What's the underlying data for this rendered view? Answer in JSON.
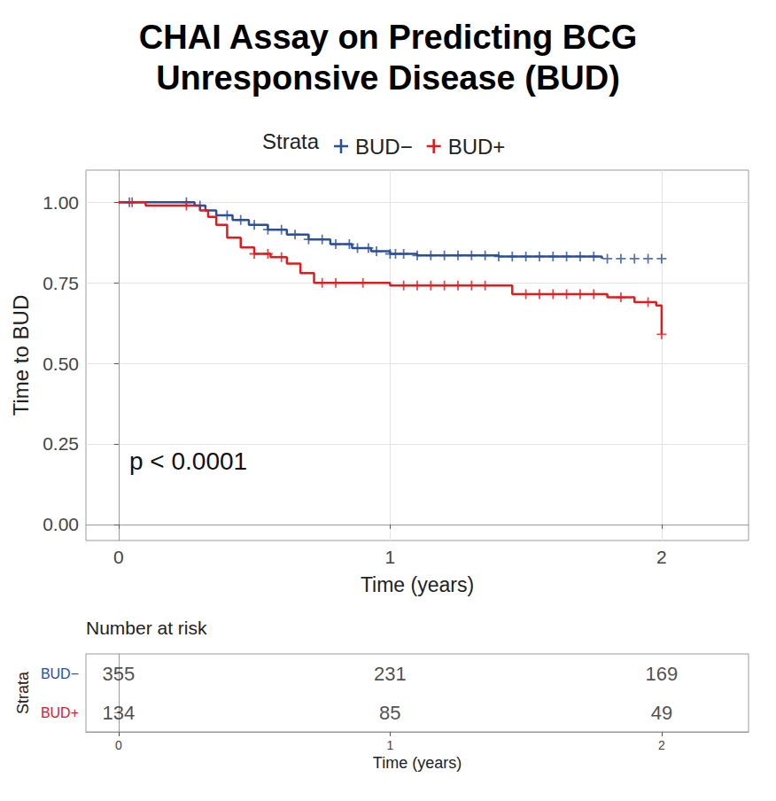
{
  "chart_data": {
    "type": "line",
    "title": "CHAI Assay on Predicting BCG\nUnresponsive Disease (BUD)",
    "legend_title": "Strata",
    "xlabel": "Time (years)",
    "ylabel": "Time to BUD",
    "annotation": "p < 0.0001",
    "xlim": [
      -0.12,
      2.32
    ],
    "xticks": [
      0,
      1,
      2
    ],
    "ylim": [
      -0.05,
      1.1
    ],
    "yticks": [
      {
        "value": 0,
        "label": "0.00"
      },
      {
        "value": 0.25,
        "label": "0.25"
      },
      {
        "value": 0.5,
        "label": "0.50"
      },
      {
        "value": 0.75,
        "label": "0.75"
      },
      {
        "value": 1,
        "label": "1.00"
      }
    ],
    "grid": true,
    "marker": "cross",
    "series": [
      {
        "name": "BUD−",
        "color": "#2c4f9c",
        "x": [
          0,
          0.28,
          0.32,
          0.36,
          0.42,
          0.48,
          0.55,
          0.62,
          0.7,
          0.78,
          0.86,
          0.93,
          1.0,
          1.1,
          1.4,
          1.78
        ],
        "values": [
          1.0,
          0.99,
          0.975,
          0.96,
          0.945,
          0.93,
          0.915,
          0.9,
          0.885,
          0.87,
          0.858,
          0.848,
          0.84,
          0.835,
          0.832,
          0.825
        ],
        "censored": [
          0.04,
          0.25,
          0.3,
          0.4,
          0.45,
          0.5,
          0.55,
          0.6,
          0.65,
          0.7,
          0.75,
          0.8,
          0.85,
          0.88,
          0.92,
          0.95,
          1.0,
          1.02,
          1.05,
          1.1,
          1.15,
          1.2,
          1.25,
          1.3,
          1.35,
          1.4,
          1.45,
          1.5,
          1.55,
          1.6,
          1.65,
          1.7,
          1.75,
          1.8,
          1.85,
          1.9,
          1.95,
          2.0
        ],
        "at_risk": [
          355,
          231,
          169
        ]
      },
      {
        "name": "BUD+",
        "color": "#e31a1c",
        "x": [
          0,
          0.1,
          0.3,
          0.33,
          0.36,
          0.4,
          0.45,
          0.5,
          0.56,
          0.62,
          0.67,
          0.72,
          1.0,
          1.45,
          1.8,
          1.9,
          1.98,
          2.0
        ],
        "values": [
          1.0,
          0.99,
          0.975,
          0.955,
          0.93,
          0.89,
          0.86,
          0.84,
          0.83,
          0.81,
          0.78,
          0.75,
          0.742,
          0.715,
          0.705,
          0.69,
          0.68,
          0.59
        ],
        "censored": [
          0.05,
          0.25,
          0.5,
          0.55,
          0.6,
          0.75,
          0.8,
          0.9,
          1.05,
          1.1,
          1.15,
          1.2,
          1.25,
          1.3,
          1.35,
          1.5,
          1.55,
          1.6,
          1.65,
          1.7,
          1.75,
          1.85,
          1.95,
          2.0
        ],
        "at_risk": [
          134,
          85,
          49
        ]
      }
    ],
    "risk_table": {
      "title": "Number at risk",
      "ylabel": "Strata",
      "xlabel": "Time (years)",
      "x": [
        0,
        1,
        2
      ],
      "xticks": [
        0,
        1,
        2
      ]
    }
  }
}
